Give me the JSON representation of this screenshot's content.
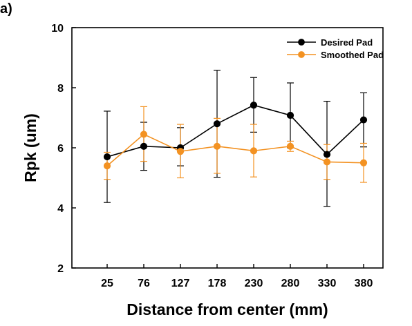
{
  "panel_label": "a)",
  "chart_data": {
    "type": "line",
    "title": "",
    "xlabel": "Distance from center (mm)",
    "ylabel": "Rpk (um)",
    "categories": [
      "25",
      "76",
      "127",
      "178",
      "230",
      "280",
      "330",
      "380"
    ],
    "ylim": [
      2,
      10
    ],
    "yticks": [
      2,
      4,
      6,
      8,
      10
    ],
    "grid": false,
    "legend_position": "top-right",
    "series": [
      {
        "name": "Desired Pad",
        "color": "#000000",
        "marker": "circle",
        "values": [
          5.7,
          6.05,
          6.0,
          6.8,
          7.42,
          7.08,
          5.78,
          6.93
        ],
        "err_low": [
          1.52,
          0.8,
          0.6,
          1.78,
          0.9,
          1.08,
          1.73,
          0.9
        ],
        "err_high": [
          1.52,
          0.8,
          0.67,
          1.78,
          0.92,
          1.08,
          1.77,
          0.9
        ]
      },
      {
        "name": "Smoothed Pad",
        "color": "#f39222",
        "marker": "circle",
        "values": [
          5.4,
          6.45,
          5.88,
          6.05,
          5.9,
          6.05,
          5.53,
          5.5
        ],
        "err_low": [
          0.45,
          0.9,
          0.88,
          0.9,
          0.87,
          0.17,
          0.58,
          0.65
        ],
        "err_high": [
          0.45,
          0.92,
          0.9,
          0.93,
          0.88,
          0.17,
          0.58,
          0.65
        ]
      }
    ]
  }
}
